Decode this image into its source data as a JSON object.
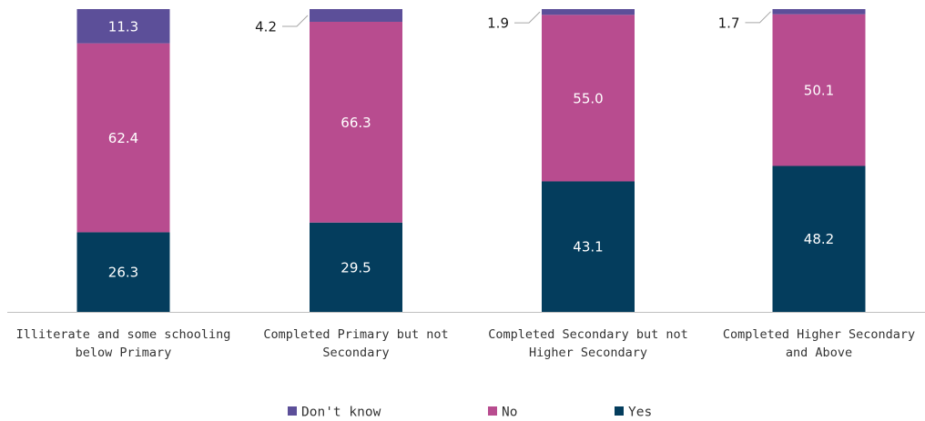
{
  "chart_data": {
    "type": "bar",
    "stacked": true,
    "categories": [
      [
        "Illiterate and some schooling",
        "below Primary"
      ],
      [
        "Completed Primary but not",
        "Secondary"
      ],
      [
        "Completed Secondary but not",
        "Higher Secondary"
      ],
      [
        "Completed Higher Secondary",
        "and Above"
      ]
    ],
    "series": [
      {
        "name": "Yes",
        "color": "#043d5d",
        "values": [
          26.3,
          29.5,
          43.1,
          48.2
        ]
      },
      {
        "name": "No",
        "color": "#b84c8f",
        "values": [
          62.4,
          66.3,
          55.0,
          50.1
        ]
      },
      {
        "name": "Don't know",
        "color": "#5c4f99",
        "values": [
          11.3,
          4.2,
          1.9,
          1.7
        ]
      }
    ],
    "ylim": [
      0,
      100
    ],
    "legend_order": [
      "Don't know",
      "No",
      "Yes"
    ],
    "legend_position": "bottom",
    "grid": false
  }
}
